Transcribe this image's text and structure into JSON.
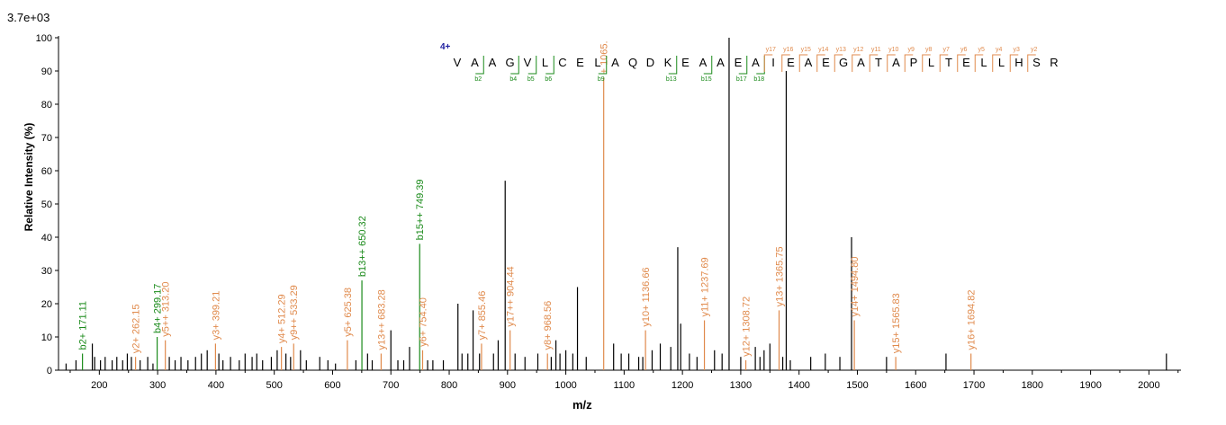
{
  "header": {
    "max_intensity": "3.7e+03"
  },
  "colors": {
    "b_ion": "#1a8a1a",
    "y_ion": "#e08a4c",
    "other": "#000000",
    "axis": "#000000",
    "charge": "#1f1fa0"
  },
  "chart_data": {
    "type": "bar",
    "title": "",
    "xlabel": "m/z",
    "ylabel": "Relative   Intensity (%)",
    "xlim": [
      130,
      2055
    ],
    "ylim": [
      0,
      100
    ],
    "x_ticks": [
      200,
      300,
      400,
      500,
      600,
      700,
      800,
      900,
      1000,
      1100,
      1200,
      1300,
      1400,
      1500,
      1600,
      1700,
      1800,
      1900,
      2000
    ],
    "y_ticks": [
      0,
      10,
      20,
      30,
      40,
      50,
      60,
      70,
      80,
      90,
      100
    ],
    "annotated_peaks": [
      {
        "ion": "b",
        "mz": 171.11,
        "intensity": 5,
        "label": "b2+ 171.11"
      },
      {
        "ion": "b",
        "mz": 299.17,
        "intensity": 10,
        "label": "b4+ 299.17"
      },
      {
        "ion": "b",
        "mz": 650.32,
        "intensity": 27,
        "label": "b13++ 650.32"
      },
      {
        "ion": "b",
        "mz": 749.39,
        "intensity": 38,
        "label": "b15++ 749.39"
      },
      {
        "ion": "y",
        "mz": 262.15,
        "intensity": 4,
        "label": "y2+ 262.15"
      },
      {
        "ion": "y",
        "mz": 313.2,
        "intensity": 9,
        "label": "y5++ 313.20"
      },
      {
        "ion": "y",
        "mz": 399.21,
        "intensity": 8,
        "label": "y3+ 399.21"
      },
      {
        "ion": "y",
        "mz": 512.29,
        "intensity": 7,
        "label": "y4+ 512.29"
      },
      {
        "ion": "y",
        "mz": 533.29,
        "intensity": 8,
        "label": "y9++ 533.29"
      },
      {
        "ion": "y",
        "mz": 625.38,
        "intensity": 9,
        "label": "y5+ 625.38"
      },
      {
        "ion": "y",
        "mz": 683.28,
        "intensity": 5,
        "label": "y13++ 683.28"
      },
      {
        "ion": "y",
        "mz": 754.4,
        "intensity": 6,
        "label": "y6+ 754.40"
      },
      {
        "ion": "y",
        "mz": 855.46,
        "intensity": 8,
        "label": "y7+ 855.46"
      },
      {
        "ion": "y",
        "mz": 904.44,
        "intensity": 12,
        "label": "y17++ 904.44"
      },
      {
        "ion": "y",
        "mz": 968.56,
        "intensity": 5,
        "label": "y8+ 968.56"
      },
      {
        "ion": "y",
        "mz": 1065,
        "intensity": 88,
        "label": "+ 1065."
      },
      {
        "ion": "y",
        "mz": 1136.66,
        "intensity": 12,
        "label": "y10+ 1136.66"
      },
      {
        "ion": "y",
        "mz": 1237.69,
        "intensity": 15,
        "label": "y11+ 1237.69"
      },
      {
        "ion": "y",
        "mz": 1308.72,
        "intensity": 3,
        "label": "y12+ 1308.72"
      },
      {
        "ion": "y",
        "mz": 1365.75,
        "intensity": 18,
        "label": "y13+ 1365.75"
      },
      {
        "ion": "y",
        "mz": 1494.8,
        "intensity": 15,
        "label": "y14+ 1494.80"
      },
      {
        "ion": "y",
        "mz": 1565.83,
        "intensity": 4,
        "label": "y15+ 1565.83"
      },
      {
        "ion": "y",
        "mz": 1694.82,
        "intensity": 5,
        "label": "y16+ 1694.82"
      }
    ],
    "other_peaks": [
      [
        143,
        2
      ],
      [
        160,
        3
      ],
      [
        188,
        8
      ],
      [
        192,
        4
      ],
      [
        202,
        3
      ],
      [
        210,
        4
      ],
      [
        222,
        3
      ],
      [
        230,
        4
      ],
      [
        240,
        3
      ],
      [
        248,
        5
      ],
      [
        255,
        4
      ],
      [
        270,
        3
      ],
      [
        283,
        4
      ],
      [
        292,
        2
      ],
      [
        320,
        4
      ],
      [
        330,
        3
      ],
      [
        340,
        4
      ],
      [
        352,
        3
      ],
      [
        365,
        4
      ],
      [
        375,
        5
      ],
      [
        385,
        6
      ],
      [
        405,
        5
      ],
      [
        412,
        3
      ],
      [
        425,
        4
      ],
      [
        440,
        3
      ],
      [
        450,
        5
      ],
      [
        462,
        4
      ],
      [
        470,
        5
      ],
      [
        480,
        3
      ],
      [
        495,
        4
      ],
      [
        505,
        6
      ],
      [
        520,
        5
      ],
      [
        528,
        4
      ],
      [
        545,
        6
      ],
      [
        555,
        3
      ],
      [
        578,
        4
      ],
      [
        592,
        3
      ],
      [
        605,
        2
      ],
      [
        640,
        3
      ],
      [
        660,
        5
      ],
      [
        668,
        3
      ],
      [
        700,
        12
      ],
      [
        712,
        3
      ],
      [
        722,
        3
      ],
      [
        732,
        7
      ],
      [
        763,
        3
      ],
      [
        772,
        3
      ],
      [
        790,
        3
      ],
      [
        815,
        20
      ],
      [
        822,
        5
      ],
      [
        832,
        5
      ],
      [
        841,
        18
      ],
      [
        852,
        5
      ],
      [
        876,
        5
      ],
      [
        884,
        9
      ],
      [
        896,
        57
      ],
      [
        913,
        5
      ],
      [
        930,
        4
      ],
      [
        952,
        5
      ],
      [
        975,
        4
      ],
      [
        983,
        9
      ],
      [
        990,
        5
      ],
      [
        1000,
        6
      ],
      [
        1012,
        5
      ],
      [
        1020,
        25
      ],
      [
        1035,
        4
      ],
      [
        1082,
        8
      ],
      [
        1095,
        5
      ],
      [
        1108,
        5
      ],
      [
        1125,
        4
      ],
      [
        1132,
        4
      ],
      [
        1148,
        6
      ],
      [
        1162,
        8
      ],
      [
        1180,
        7
      ],
      [
        1192,
        37
      ],
      [
        1197,
        14
      ],
      [
        1212,
        5
      ],
      [
        1225,
        4
      ],
      [
        1255,
        6
      ],
      [
        1268,
        5
      ],
      [
        1280,
        100
      ],
      [
        1300,
        4
      ],
      [
        1325,
        7
      ],
      [
        1333,
        4
      ],
      [
        1340,
        6
      ],
      [
        1350,
        8
      ],
      [
        1372,
        4
      ],
      [
        1378,
        90
      ],
      [
        1385,
        3
      ],
      [
        1420,
        4
      ],
      [
        1445,
        5
      ],
      [
        1470,
        4
      ],
      [
        1490,
        40
      ],
      [
        1550,
        4
      ],
      [
        1652,
        5
      ],
      [
        2030,
        5
      ]
    ],
    "sequence": {
      "charge": "4+",
      "residues": [
        "V",
        "A",
        "A",
        "G",
        "V",
        "L",
        "C",
        "E",
        "L",
        "A",
        "Q",
        "D",
        "K",
        "E",
        "A",
        "A",
        "E",
        "A",
        "I",
        "E",
        "A",
        "E",
        "G",
        "A",
        "T",
        "A",
        "P",
        "L",
        "T",
        "E",
        "L",
        "L",
        "H",
        "S",
        "R"
      ],
      "b_labels": [
        [
          1,
          "b2"
        ],
        [
          3,
          "b4"
        ],
        [
          4,
          "b5"
        ],
        [
          5,
          "b6"
        ],
        [
          8,
          "b9"
        ],
        [
          12,
          "b13"
        ],
        [
          14,
          "b15"
        ],
        [
          16,
          "b17"
        ],
        [
          17,
          "b18"
        ]
      ],
      "y_labels": [
        [
          18,
          "y17"
        ],
        [
          19,
          "y16"
        ],
        [
          20,
          "y15"
        ],
        [
          21,
          "y14"
        ],
        [
          22,
          "y13"
        ],
        [
          23,
          "y12"
        ],
        [
          24,
          "y11"
        ],
        [
          25,
          "y10"
        ],
        [
          26,
          "y9"
        ],
        [
          27,
          "y8"
        ],
        [
          28,
          "y7"
        ],
        [
          29,
          "y6"
        ],
        [
          30,
          "y5"
        ],
        [
          31,
          "y4"
        ],
        [
          32,
          "y3"
        ],
        [
          33,
          "y2"
        ]
      ]
    }
  }
}
